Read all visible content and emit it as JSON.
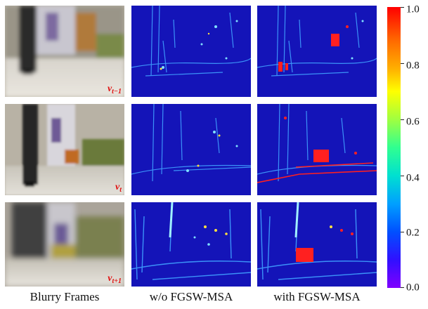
{
  "columns": {
    "blurry": "Blurry Frames",
    "without": "w/o FGSW-MSA",
    "with": "with FGSW-MSA"
  },
  "rows": [
    {
      "label_main": "v",
      "label_sub": "t−1"
    },
    {
      "label_main": "v",
      "label_sub": "t"
    },
    {
      "label_main": "v",
      "label_sub": "t+1"
    }
  ],
  "colorbar": {
    "ticks": [
      "1.0",
      "0.8",
      "0.6",
      "0.4",
      "0.2",
      "0.0"
    ],
    "range": [
      0.0,
      1.0
    ],
    "colors": [
      "#8000ff",
      "#0050ff",
      "#00a0ff",
      "#30ff90",
      "#ffff00",
      "#ff6a00",
      "#ff0000"
    ]
  }
}
